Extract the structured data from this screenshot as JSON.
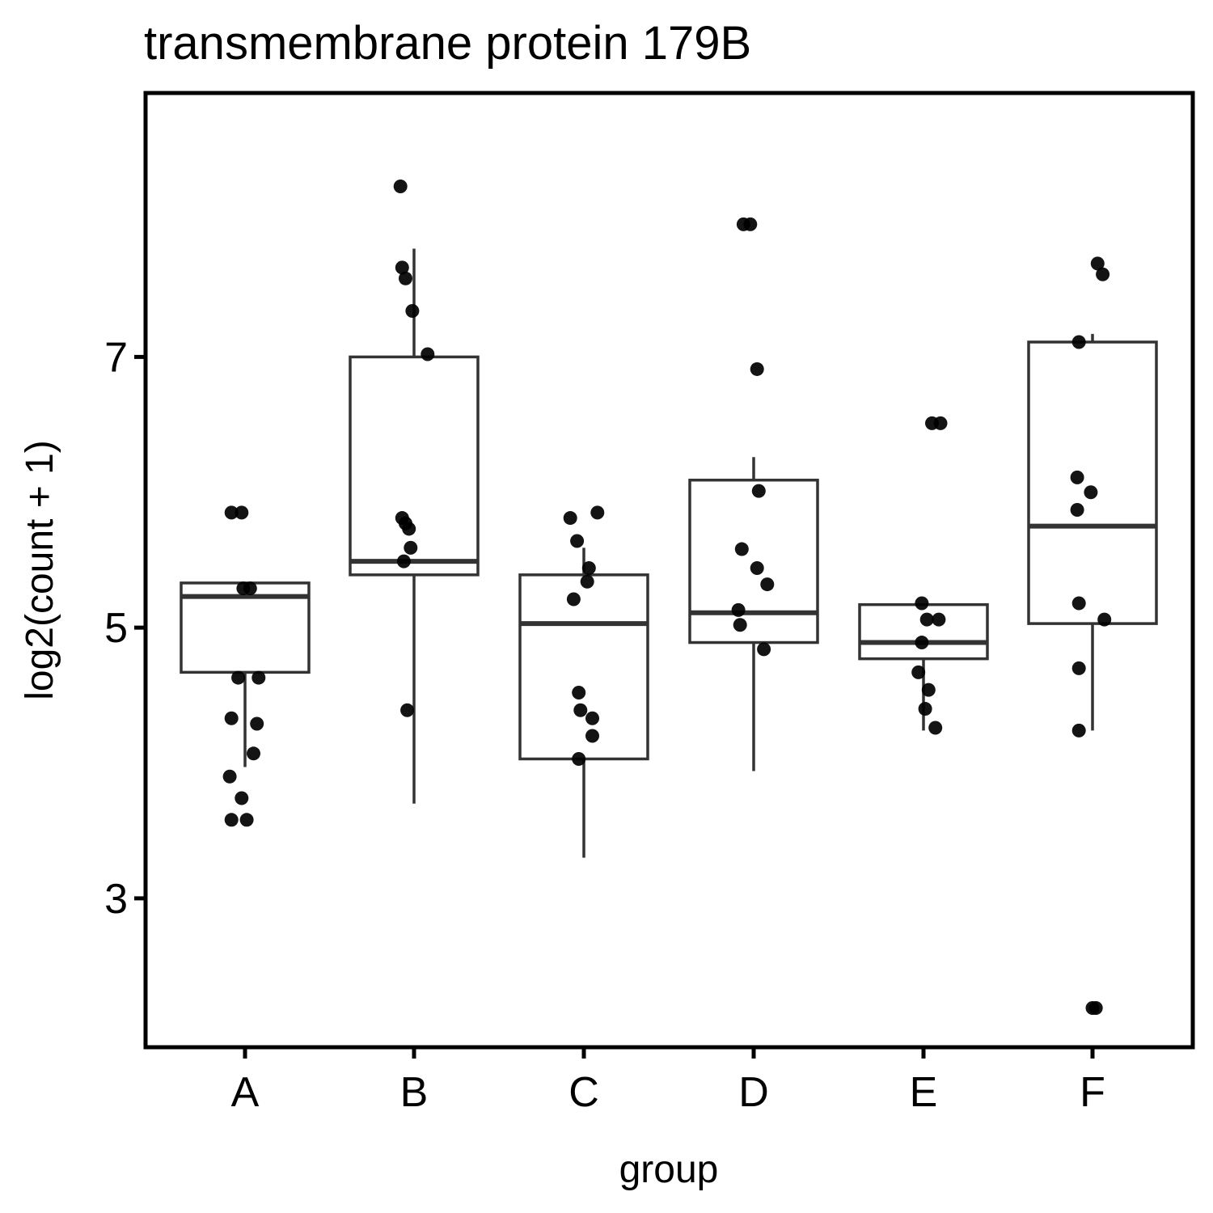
{
  "chart_data": {
    "type": "boxplot",
    "title": "transmembrane protein 179B",
    "xlabel": "group",
    "ylabel": "log2(count + 1)",
    "ylim": [
      1.9,
      8.95
    ],
    "y_ticks": [
      3,
      5,
      7
    ],
    "grid": false,
    "legend": "none",
    "categories": [
      "A",
      "B",
      "C",
      "D",
      "E",
      "F"
    ],
    "boxes": [
      {
        "group": "A",
        "whisker_low": 3.97,
        "q1": 4.67,
        "median": 5.23,
        "q3": 5.33,
        "whisker_high": 5.33
      },
      {
        "group": "B",
        "whisker_low": 3.7,
        "q1": 5.39,
        "median": 5.49,
        "q3": 7.0,
        "whisker_high": 7.8
      },
      {
        "group": "C",
        "whisker_low": 3.3,
        "q1": 4.03,
        "median": 5.03,
        "q3": 5.39,
        "whisker_high": 5.59
      },
      {
        "group": "D",
        "whisker_low": 3.94,
        "q1": 4.89,
        "median": 5.11,
        "q3": 6.09,
        "whisker_high": 6.26
      },
      {
        "group": "E",
        "whisker_low": 4.24,
        "q1": 4.77,
        "median": 4.89,
        "q3": 5.17,
        "whisker_high": 5.17
      },
      {
        "group": "F",
        "whisker_low": 4.24,
        "q1": 5.03,
        "median": 5.75,
        "q3": 7.11,
        "whisker_high": 7.17
      }
    ],
    "points": [
      {
        "group": "A",
        "jitter": -0.08,
        "y": 5.85
      },
      {
        "group": "A",
        "jitter": -0.02,
        "y": 5.85
      },
      {
        "group": "A",
        "jitter": -0.01,
        "y": 5.29
      },
      {
        "group": "A",
        "jitter": 0.03,
        "y": 5.29
      },
      {
        "group": "A",
        "jitter": -0.04,
        "y": 4.63
      },
      {
        "group": "A",
        "jitter": 0.08,
        "y": 4.63
      },
      {
        "group": "A",
        "jitter": -0.08,
        "y": 4.33
      },
      {
        "group": "A",
        "jitter": 0.07,
        "y": 4.29
      },
      {
        "group": "A",
        "jitter": 0.05,
        "y": 4.07
      },
      {
        "group": "A",
        "jitter": -0.09,
        "y": 3.9
      },
      {
        "group": "A",
        "jitter": -0.02,
        "y": 3.74
      },
      {
        "group": "A",
        "jitter": -0.08,
        "y": 3.58
      },
      {
        "group": "A",
        "jitter": 0.01,
        "y": 3.58
      },
      {
        "group": "B",
        "jitter": -0.08,
        "y": 8.26
      },
      {
        "group": "B",
        "jitter": -0.07,
        "y": 7.66
      },
      {
        "group": "B",
        "jitter": -0.05,
        "y": 7.58
      },
      {
        "group": "B",
        "jitter": -0.01,
        "y": 7.34
      },
      {
        "group": "B",
        "jitter": 0.08,
        "y": 7.02
      },
      {
        "group": "B",
        "jitter": -0.07,
        "y": 5.81
      },
      {
        "group": "B",
        "jitter": -0.05,
        "y": 5.77
      },
      {
        "group": "B",
        "jitter": -0.03,
        "y": 5.73
      },
      {
        "group": "B",
        "jitter": -0.02,
        "y": 5.59
      },
      {
        "group": "B",
        "jitter": -0.06,
        "y": 5.49
      },
      {
        "group": "B",
        "jitter": -0.04,
        "y": 4.39
      },
      {
        "group": "C",
        "jitter": -0.08,
        "y": 5.81
      },
      {
        "group": "C",
        "jitter": 0.08,
        "y": 5.85
      },
      {
        "group": "C",
        "jitter": -0.04,
        "y": 5.64
      },
      {
        "group": "C",
        "jitter": 0.03,
        "y": 5.44
      },
      {
        "group": "C",
        "jitter": 0.02,
        "y": 5.34
      },
      {
        "group": "C",
        "jitter": -0.06,
        "y": 5.21
      },
      {
        "group": "C",
        "jitter": -0.03,
        "y": 4.52
      },
      {
        "group": "C",
        "jitter": -0.02,
        "y": 4.39
      },
      {
        "group": "C",
        "jitter": 0.05,
        "y": 4.33
      },
      {
        "group": "C",
        "jitter": 0.05,
        "y": 4.2
      },
      {
        "group": "C",
        "jitter": -0.03,
        "y": 4.03
      },
      {
        "group": "D",
        "jitter": -0.06,
        "y": 7.98
      },
      {
        "group": "D",
        "jitter": -0.02,
        "y": 7.98
      },
      {
        "group": "D",
        "jitter": 0.02,
        "y": 6.91
      },
      {
        "group": "D",
        "jitter": 0.03,
        "y": 6.01
      },
      {
        "group": "D",
        "jitter": -0.07,
        "y": 5.58
      },
      {
        "group": "D",
        "jitter": 0.02,
        "y": 5.44
      },
      {
        "group": "D",
        "jitter": 0.08,
        "y": 5.32
      },
      {
        "group": "D",
        "jitter": -0.09,
        "y": 5.13
      },
      {
        "group": "D",
        "jitter": -0.08,
        "y": 5.02
      },
      {
        "group": "D",
        "jitter": 0.06,
        "y": 4.84
      },
      {
        "group": "E",
        "jitter": 0.05,
        "y": 6.51
      },
      {
        "group": "E",
        "jitter": 0.1,
        "y": 6.51
      },
      {
        "group": "E",
        "jitter": -0.01,
        "y": 5.18
      },
      {
        "group": "E",
        "jitter": 0.02,
        "y": 5.06
      },
      {
        "group": "E",
        "jitter": 0.09,
        "y": 5.06
      },
      {
        "group": "E",
        "jitter": -0.01,
        "y": 4.89
      },
      {
        "group": "E",
        "jitter": -0.03,
        "y": 4.67
      },
      {
        "group": "E",
        "jitter": 0.03,
        "y": 4.54
      },
      {
        "group": "E",
        "jitter": 0.01,
        "y": 4.4
      },
      {
        "group": "E",
        "jitter": 0.07,
        "y": 4.26
      },
      {
        "group": "F",
        "jitter": 0.03,
        "y": 7.69
      },
      {
        "group": "F",
        "jitter": 0.06,
        "y": 7.61
      },
      {
        "group": "F",
        "jitter": -0.08,
        "y": 7.11
      },
      {
        "group": "F",
        "jitter": -0.09,
        "y": 6.11
      },
      {
        "group": "F",
        "jitter": -0.01,
        "y": 6.0
      },
      {
        "group": "F",
        "jitter": -0.09,
        "y": 5.87
      },
      {
        "group": "F",
        "jitter": -0.08,
        "y": 5.18
      },
      {
        "group": "F",
        "jitter": 0.07,
        "y": 5.06
      },
      {
        "group": "F",
        "jitter": -0.08,
        "y": 4.7
      },
      {
        "group": "F",
        "jitter": -0.08,
        "y": 4.24
      },
      {
        "group": "F",
        "jitter": 0.0,
        "y": 2.19
      },
      {
        "group": "F",
        "jitter": 0.02,
        "y": 2.19
      }
    ]
  }
}
